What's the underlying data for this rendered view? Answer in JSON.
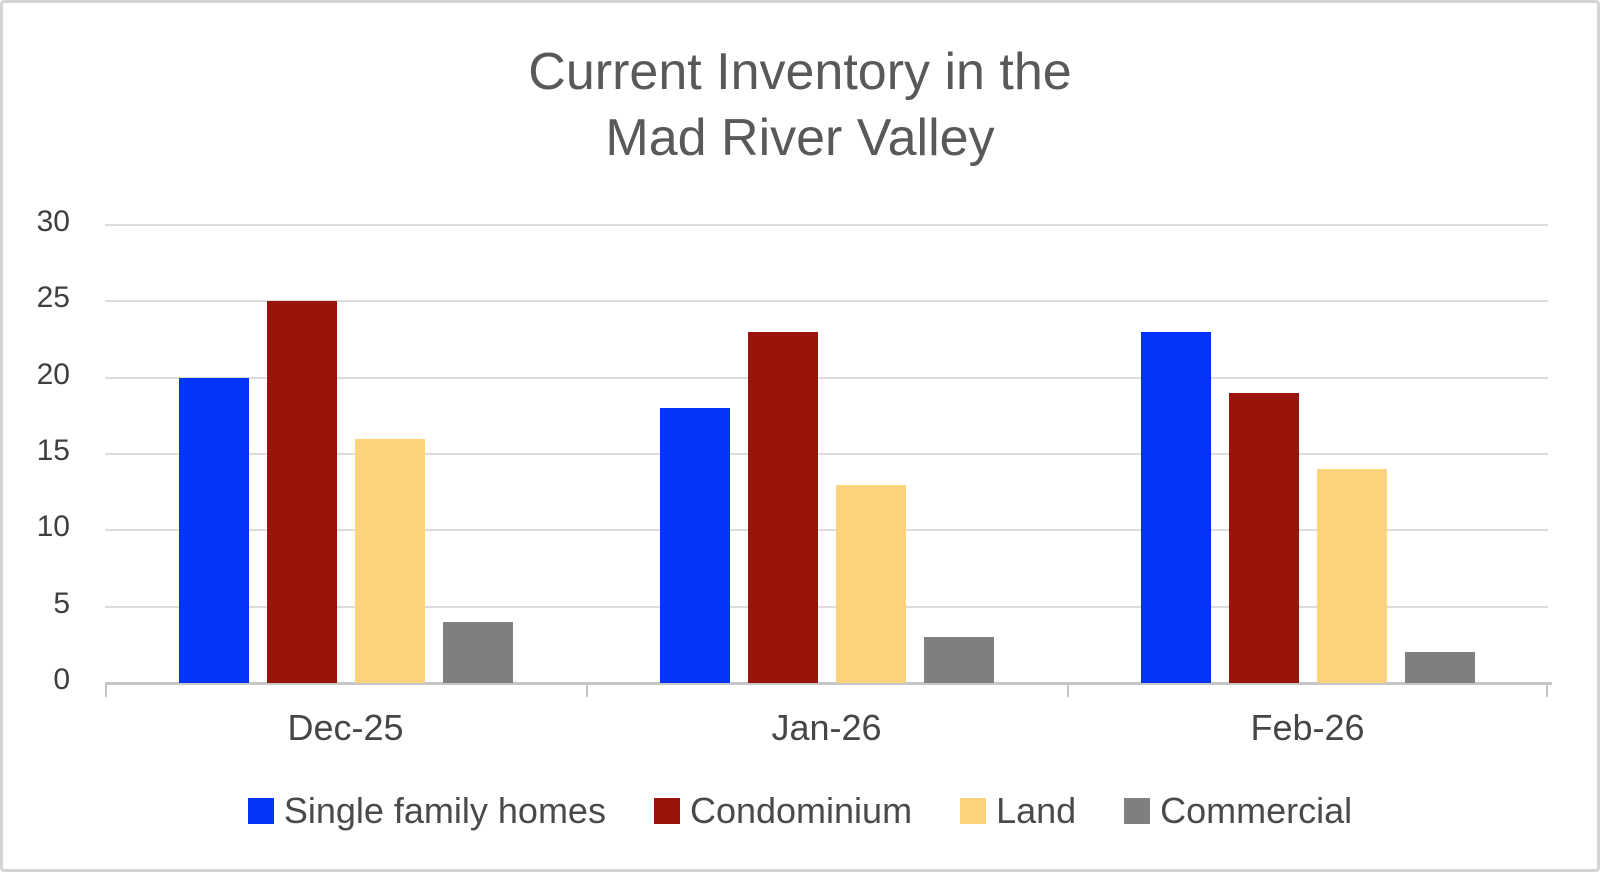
{
  "chart_data": {
    "type": "bar",
    "title": "Current Inventory in the Mad River Valley",
    "title_lines": [
      "Current Inventory in the",
      "Mad River Valley"
    ],
    "categories": [
      "Dec-25",
      "Jan-26",
      "Feb-26"
    ],
    "series": [
      {
        "name": "Single family homes",
        "color": "#0433fa",
        "values": [
          20,
          18,
          23
        ]
      },
      {
        "name": "Condominium",
        "color": "#99150b",
        "values": [
          25,
          23,
          19
        ]
      },
      {
        "name": "Land",
        "color": "#fcd37c",
        "values": [
          16,
          13,
          14
        ]
      },
      {
        "name": "Commercial",
        "color": "#7f7f7f",
        "values": [
          4,
          3,
          2
        ]
      }
    ],
    "xlabel": "",
    "ylabel": "",
    "ylim": [
      0,
      30
    ],
    "yticks": [
      0,
      5,
      10,
      15,
      20,
      25,
      30
    ],
    "grid": true,
    "legend_position": "bottom",
    "colors": {
      "title_text": "#595959",
      "axis_label_text": "#3f3f3f",
      "category_label_text": "#464646",
      "legend_text": "#4a4a4a",
      "gridline": "#dcdcdc",
      "axis_line": "#c6c6c6",
      "background": "#ffffff",
      "frame_border": "#d4d4d4"
    }
  }
}
